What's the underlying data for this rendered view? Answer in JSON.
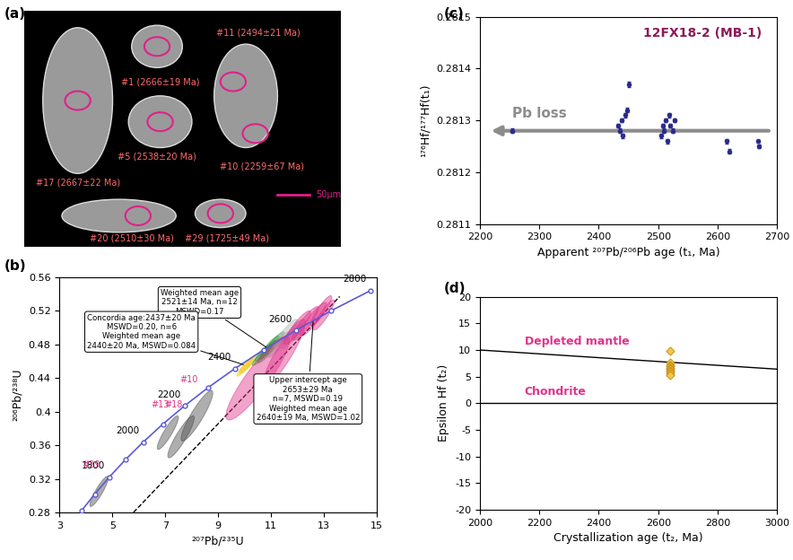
{
  "chart_data": [
    {
      "type": "image",
      "panel_label": "(a)",
      "grains": [
        "#17 (2667±22 Ma)",
        "#1 (2666±19 Ma)",
        "#11 (2494±21 Ma)",
        "#5 (2538±20 Ma)",
        "#10 (2259±67 Ma)",
        "#20 (2510±30 Ma)",
        "#29 (1725±49 Ma)"
      ],
      "scale_bar": "50μm"
    },
    {
      "type": "concordia",
      "panel_label": "(b)",
      "x_label": "²⁰⁷Pb/²³⁵U",
      "y_label": "²⁰⁶Pb/²³⁸U",
      "xlim": [
        3,
        15
      ],
      "xticks": [
        3,
        5,
        7,
        9,
        11,
        13,
        15
      ],
      "ylim": [
        0.28,
        0.56
      ],
      "yticks": [
        0.28,
        0.32,
        0.36,
        0.4,
        0.44,
        0.48,
        0.52,
        0.56
      ],
      "concordia": {
        "age": [
          1600,
          1700,
          1800,
          1900,
          2000,
          2100,
          2200,
          2300,
          2400,
          2500,
          2600,
          2700,
          2800
        ],
        "x": [
          3.834,
          4.335,
          4.886,
          5.496,
          6.169,
          6.911,
          7.729,
          8.633,
          9.63,
          10.73,
          11.944,
          13.283,
          14.762
        ],
        "y": [
          0.282,
          0.3018,
          0.3221,
          0.3428,
          0.3638,
          0.3851,
          0.4068,
          0.4288,
          0.4511,
          0.4737,
          0.4968,
          0.5202,
          0.544
        ],
        "labeled_ages": [
          1800,
          2000,
          2200,
          2400,
          2600,
          2800
        ],
        "color": "#5a5ad6"
      },
      "discordia": {
        "x": [
          5.8,
          13.6
        ],
        "y": [
          0.28,
          0.537
        ],
        "line_style": "dashed"
      },
      "error_correlation": 0.9,
      "ellipses": [
        {
          "x": 4.5,
          "y": 0.305,
          "x_err": 0.35,
          "y_err": 0.018,
          "color": "#4d4d4d",
          "label": "#29"
        },
        {
          "x": 7.1,
          "y": 0.375,
          "x_err": 0.4,
          "y_err": 0.02,
          "color": "#4d4d4d",
          "label": "#13"
        },
        {
          "x": 7.6,
          "y": 0.37,
          "x_err": 0.5,
          "y_err": 0.025,
          "color": "#4d4d4d",
          "label": "#18"
        },
        {
          "x": 8.2,
          "y": 0.395,
          "x_err": 0.6,
          "y_err": 0.03,
          "color": "#4d4d4d",
          "label": "#10"
        },
        {
          "x": 10.0,
          "y": 0.452,
          "x_err": 0.25,
          "y_err": 0.008,
          "color": "#f2d23c"
        },
        {
          "x": 10.15,
          "y": 0.456,
          "x_err": 0.25,
          "y_err": 0.008,
          "color": "#f2d23c"
        },
        {
          "x": 10.05,
          "y": 0.455,
          "x_err": 0.25,
          "y_err": 0.008,
          "color": "#f2d23c"
        },
        {
          "x": 10.2,
          "y": 0.458,
          "x_err": 0.25,
          "y_err": 0.008,
          "color": "#f2d23c"
        },
        {
          "x": 9.95,
          "y": 0.45,
          "x_err": 0.25,
          "y_err": 0.008,
          "color": "#f2d23c"
        },
        {
          "x": 10.1,
          "y": 0.454,
          "x_err": 0.25,
          "y_err": 0.008,
          "color": "#f2d23c"
        },
        {
          "x": 10.7,
          "y": 0.47,
          "x_err": 0.3,
          "y_err": 0.01,
          "color": "#2e9e3e"
        },
        {
          "x": 10.9,
          "y": 0.475,
          "x_err": 0.3,
          "y_err": 0.01,
          "color": "#2e9e3e"
        },
        {
          "x": 11.0,
          "y": 0.48,
          "x_err": 0.3,
          "y_err": 0.01,
          "color": "#2e9e3e"
        },
        {
          "x": 10.8,
          "y": 0.468,
          "x_err": 0.3,
          "y_err": 0.01,
          "color": "#2e9e3e"
        },
        {
          "x": 11.1,
          "y": 0.478,
          "x_err": 0.3,
          "y_err": 0.01,
          "color": "#2e9e3e"
        },
        {
          "x": 10.6,
          "y": 0.465,
          "x_err": 0.3,
          "y_err": 0.01,
          "color": "#2e9e3e"
        },
        {
          "x": 11.2,
          "y": 0.485,
          "x_err": 0.3,
          "y_err": 0.01,
          "color": "#2e9e3e"
        },
        {
          "x": 10.85,
          "y": 0.472,
          "x_err": 0.3,
          "y_err": 0.01,
          "color": "#2e9e3e"
        },
        {
          "x": 11.3,
          "y": 0.48,
          "x_err": 0.4,
          "y_err": 0.015,
          "color": "#b3b3b3"
        },
        {
          "x": 11.8,
          "y": 0.49,
          "x_err": 0.4,
          "y_err": 0.015,
          "color": "#b3b3b3"
        },
        {
          "x": 11.6,
          "y": 0.495,
          "x_err": 0.4,
          "y_err": 0.015,
          "color": "#b3b3b3"
        },
        {
          "x": 12.0,
          "y": 0.5,
          "x_err": 0.5,
          "y_err": 0.02,
          "color": "#e0338a"
        },
        {
          "x": 12.3,
          "y": 0.505,
          "x_err": 0.5,
          "y_err": 0.02,
          "color": "#e0338a"
        },
        {
          "x": 12.6,
          "y": 0.51,
          "x_err": 0.5,
          "y_err": 0.02,
          "color": "#e0338a"
        },
        {
          "x": 12.9,
          "y": 0.52,
          "x_err": 0.4,
          "y_err": 0.018,
          "color": "#e0338a"
        },
        {
          "x": 11.5,
          "y": 0.47,
          "x_err": 0.8,
          "y_err": 0.04,
          "color": "#e0338a"
        },
        {
          "x": 10.5,
          "y": 0.44,
          "x_err": 1.2,
          "y_err": 0.05,
          "color": "#e0338a"
        },
        {
          "x": 13.0,
          "y": 0.515,
          "x_err": 0.4,
          "y_err": 0.018,
          "color": "#e0338a"
        }
      ],
      "annotations": [
        {
          "text": "Weighted mean age\n2521±14 Ma, n=12\nMSWD=0.17",
          "x": 10.9,
          "y": 0.475
        },
        {
          "text": "Concordia age:2437±20 Ma\nMSWD=0.20, n=6\nWeighted mean age\n2440±20 Ma, MSWD=0.084",
          "x": 10.05,
          "y": 0.455
        },
        {
          "text": "Upper intercept age\n2653±29 Ma\nn=7, MSWD=0.19\nWeighted mean age\n2640±19 Ma, MSWD=1.02",
          "x": 12.6,
          "y": 0.51
        }
      ]
    },
    {
      "type": "scatter",
      "panel_label": "(c)",
      "title": "12FX18-2 (MB-1)",
      "x_label": "Apparent ²⁰⁷Pb/²⁰⁶Pb age (t₁, Ma)",
      "y_label": "¹⁷⁶Hf/¹⁷⁷Hf(t₁)",
      "xlim": [
        2200,
        2700
      ],
      "xticks": [
        2200,
        2300,
        2400,
        2500,
        2600,
        2700
      ],
      "ylim": [
        0.2811,
        0.2815
      ],
      "yticks": [
        0.2811,
        0.2812,
        0.2813,
        0.2814,
        0.2815
      ],
      "x": [
        2255,
        2432,
        2435,
        2438,
        2440,
        2445,
        2450,
        2448,
        2505,
        2508,
        2510,
        2512,
        2515,
        2518,
        2520,
        2525,
        2528,
        2615,
        2620,
        2668,
        2670
      ],
      "y": [
        0.28128,
        0.28129,
        0.28128,
        0.2813,
        0.28127,
        0.28131,
        0.28137,
        0.28132,
        0.28127,
        0.28129,
        0.28128,
        0.2813,
        0.28126,
        0.28131,
        0.28129,
        0.28128,
        0.2813,
        0.28126,
        0.28124,
        0.28126,
        0.28125
      ],
      "y_err": [
        4e-06,
        4e-06,
        4e-06,
        4e-06,
        4e-06,
        4e-06,
        5e-06,
        4e-06,
        4e-06,
        4e-06,
        4e-06,
        4e-06,
        4e-06,
        4e-06,
        4e-06,
        4e-06,
        4e-06,
        4e-06,
        4e-06,
        3e-06,
        3e-06
      ],
      "color": "#2b2b8c",
      "marker": "o",
      "arrow": {
        "label": "Pb loss",
        "x": [
          2690,
          2215
        ],
        "y": 0.28128,
        "color": "#8c8c8c"
      }
    },
    {
      "type": "scatter",
      "panel_label": "(d)",
      "x_label": "Crystallization age (t₂, Ma)",
      "y_label": "Epsilon Hf (t₂)",
      "xlim": [
        2000,
        3000
      ],
      "xticks": [
        2000,
        2200,
        2400,
        2600,
        2800,
        3000
      ],
      "ylim": [
        -20,
        20
      ],
      "yticks": [
        -20,
        -15,
        -10,
        -5,
        0,
        5,
        10,
        15,
        20
      ],
      "x": [
        2640,
        2640,
        2640,
        2640,
        2640,
        2640,
        2640,
        2640,
        2640,
        2640
      ],
      "y": [
        9.8,
        7.6,
        7.2,
        6.9,
        6.7,
        6.4,
        6.2,
        5.9,
        5.6,
        5.2
      ],
      "color": "#f5c542",
      "marker": "diamond",
      "reference_lines": [
        {
          "name": "Depleted mantle",
          "x": [
            2000,
            3000
          ],
          "y": [
            10,
            6.4
          ]
        },
        {
          "name": "Chondrite",
          "x": [
            2000,
            3000
          ],
          "y": [
            0,
            0
          ]
        }
      ]
    }
  ]
}
